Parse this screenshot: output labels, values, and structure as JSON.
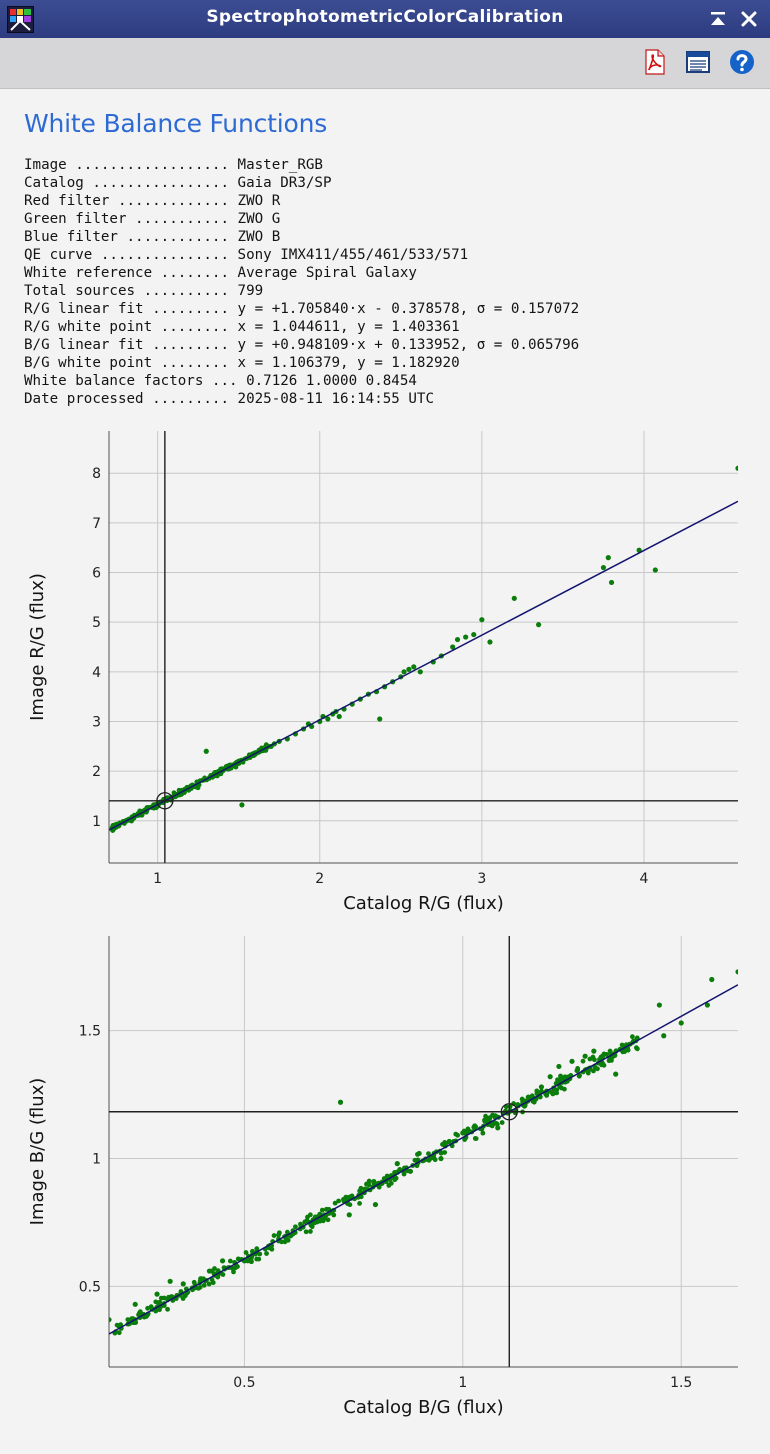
{
  "window": {
    "title": "SpectrophotometricColorCalibration",
    "buttons": {
      "shade_icon": "shade-window-icon",
      "close_icon": "close-icon"
    },
    "app_icon": "spcc-process-icon"
  },
  "toolbar": {
    "buttons": [
      {
        "name": "pdf-export-icon"
      },
      {
        "name": "console-view-icon"
      },
      {
        "name": "help-icon"
      }
    ]
  },
  "report": {
    "heading": "White Balance Functions",
    "rows": [
      {
        "label": "Image ..................",
        "value": "Master_RGB"
      },
      {
        "label": "Catalog ................",
        "value": "Gaia DR3/SP"
      },
      {
        "label": "Red filter .............",
        "value": "ZWO R"
      },
      {
        "label": "Green filter ...........",
        "value": "ZWO G"
      },
      {
        "label": "Blue filter ............",
        "value": "ZWO B"
      },
      {
        "label": "QE curve ...............",
        "value": "Sony IMX411/455/461/533/571"
      },
      {
        "label": "White reference ........",
        "value": "Average Spiral Galaxy"
      },
      {
        "label": "Total sources ..........",
        "value": "799"
      },
      {
        "label": "R/G linear fit .........",
        "value": "y = +1.705840·x - 0.378578, σ = 0.157072"
      },
      {
        "label": "R/G white point ........",
        "value": "x = 1.044611, y = 1.403361"
      },
      {
        "label": "B/G linear fit .........",
        "value": "y = +0.948109·x + 0.133952, σ = 0.065796"
      },
      {
        "label": "B/G white point ........",
        "value": "x = 1.106379, y = 1.182920"
      },
      {
        "label": "White balance factors ...",
        "value": "0.7126 1.0000 0.8454"
      },
      {
        "label": "Date processed .........",
        "value": "2025-08-11 16:14:55 UTC"
      }
    ]
  },
  "colors": {
    "points": "#0a7d0a",
    "fit_line": "#141470",
    "grid": "#c8c8c8",
    "axis": "#505050",
    "white_point_lines": "#202020",
    "heading": "#2e6ad3"
  },
  "chart_data": [
    {
      "type": "scatter",
      "xlabel": "Catalog R/G (flux)",
      "ylabel": "Image R/G (flux)",
      "xlim": [
        0.7,
        4.58
      ],
      "ylim": [
        0.15,
        8.85
      ],
      "xticks": [
        1,
        2,
        3,
        4
      ],
      "yticks": [
        1,
        2,
        3,
        4,
        5,
        6,
        7,
        8
      ],
      "grid": true,
      "fit": {
        "slope": 1.70584,
        "intercept": -0.378578
      },
      "white_point": {
        "x": 1.044611,
        "y": 1.403361
      },
      "dense_cloud": {
        "x_from": 0.72,
        "x_to": 1.7,
        "count": 260,
        "scatter": 0.06
      },
      "points": [
        [
          0.72,
          0.86
        ],
        [
          0.76,
          0.9
        ],
        [
          0.8,
          0.99
        ],
        [
          0.85,
          1.05
        ],
        [
          0.88,
          1.11
        ],
        [
          0.93,
          1.18
        ],
        [
          0.98,
          1.3
        ],
        [
          1.1,
          1.5
        ],
        [
          1.15,
          1.6
        ],
        [
          1.2,
          1.68
        ],
        [
          1.3,
          2.4
        ],
        [
          1.35,
          1.91
        ],
        [
          1.4,
          2.02
        ],
        [
          1.45,
          2.12
        ],
        [
          1.5,
          2.2
        ],
        [
          1.52,
          1.32
        ],
        [
          1.55,
          2.26
        ],
        [
          1.6,
          2.35
        ],
        [
          1.65,
          2.45
        ],
        [
          1.7,
          2.5
        ],
        [
          1.72,
          2.55
        ],
        [
          1.75,
          2.6
        ],
        [
          1.8,
          2.65
        ],
        [
          1.85,
          2.75
        ],
        [
          1.9,
          2.85
        ],
        [
          1.93,
          2.95
        ],
        [
          1.95,
          2.9
        ],
        [
          2.0,
          3.0
        ],
        [
          2.02,
          3.1
        ],
        [
          2.05,
          3.05
        ],
        [
          2.08,
          3.15
        ],
        [
          2.1,
          3.2
        ],
        [
          2.12,
          3.1
        ],
        [
          2.15,
          3.25
        ],
        [
          2.2,
          3.35
        ],
        [
          2.25,
          3.45
        ],
        [
          2.3,
          3.55
        ],
        [
          2.35,
          3.6
        ],
        [
          2.37,
          3.05
        ],
        [
          2.4,
          3.7
        ],
        [
          2.45,
          3.8
        ],
        [
          2.5,
          3.9
        ],
        [
          2.52,
          4.0
        ],
        [
          2.55,
          4.05
        ],
        [
          2.58,
          4.1
        ],
        [
          2.62,
          4.0
        ],
        [
          2.7,
          4.2
        ],
        [
          2.75,
          4.32
        ],
        [
          2.82,
          4.5
        ],
        [
          2.85,
          4.65
        ],
        [
          2.9,
          4.7
        ],
        [
          2.95,
          4.75
        ],
        [
          3.0,
          5.05
        ],
        [
          3.05,
          4.6
        ],
        [
          3.2,
          5.48
        ],
        [
          3.35,
          4.95
        ],
        [
          3.75,
          6.1
        ],
        [
          3.78,
          6.3
        ],
        [
          3.8,
          5.8
        ],
        [
          3.97,
          6.45
        ],
        [
          4.07,
          6.05
        ],
        [
          4.58,
          8.1
        ]
      ]
    },
    {
      "type": "scatter",
      "xlabel": "Catalog B/G (flux)",
      "ylabel": "Image B/G (flux)",
      "xlim": [
        0.19,
        1.63
      ],
      "ylim": [
        0.185,
        1.87
      ],
      "xticks": [
        0.5,
        1,
        1.5
      ],
      "yticks": [
        0.5,
        1,
        1.5
      ],
      "grid": true,
      "fit": {
        "slope": 0.948109,
        "intercept": 0.133952
      },
      "white_point": {
        "x": 1.106379,
        "y": 1.18292
      },
      "dense_cloud": {
        "x_from": 0.2,
        "x_to": 1.4,
        "count": 480,
        "scatter": 0.03
      },
      "points": [
        [
          0.19,
          0.37
        ],
        [
          0.25,
          0.43
        ],
        [
          0.3,
          0.47
        ],
        [
          0.33,
          0.52
        ],
        [
          0.36,
          0.51
        ],
        [
          0.4,
          0.53
        ],
        [
          0.42,
          0.56
        ],
        [
          0.45,
          0.6
        ],
        [
          0.5,
          0.6
        ],
        [
          0.56,
          0.66
        ],
        [
          0.6,
          0.7
        ],
        [
          0.65,
          0.75
        ],
        [
          0.72,
          1.22
        ],
        [
          0.74,
          0.78
        ],
        [
          0.78,
          0.9
        ],
        [
          0.8,
          0.82
        ],
        [
          0.85,
          0.98
        ],
        [
          0.88,
          0.95
        ],
        [
          0.9,
          1.02
        ],
        [
          0.95,
          1.0
        ],
        [
          1.0,
          1.1
        ],
        [
          1.05,
          1.15
        ],
        [
          1.08,
          1.12
        ],
        [
          1.12,
          1.18
        ],
        [
          1.15,
          1.24
        ],
        [
          1.18,
          1.28
        ],
        [
          1.2,
          1.32
        ],
        [
          1.22,
          1.36
        ],
        [
          1.25,
          1.38
        ],
        [
          1.28,
          1.4
        ],
        [
          1.3,
          1.42
        ],
        [
          1.32,
          1.4
        ],
        [
          1.35,
          1.33
        ],
        [
          1.45,
          1.6
        ],
        [
          1.46,
          1.48
        ],
        [
          1.5,
          1.53
        ],
        [
          1.56,
          1.6
        ],
        [
          1.57,
          1.7
        ],
        [
          1.63,
          1.73
        ]
      ]
    }
  ]
}
